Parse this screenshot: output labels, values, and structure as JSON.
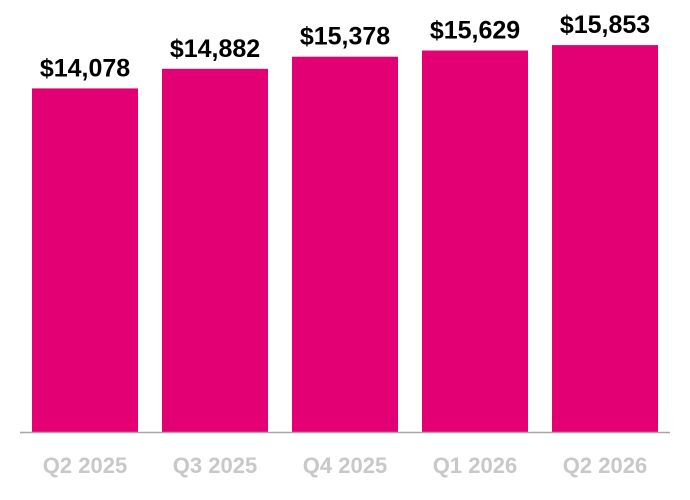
{
  "colors": {
    "bar": "#e20074",
    "axis": "#a6a6a6",
    "value_label": "#000000",
    "tick_label": "#c8c8c8"
  },
  "chart_data": {
    "type": "bar",
    "title": "",
    "xlabel": "",
    "ylabel": "",
    "categories": [
      "Q2 2025",
      "Q3 2025",
      "Q4 2025",
      "Q1 2026",
      "Q2 2026"
    ],
    "values": [
      14078,
      14882,
      15378,
      15629,
      15853
    ],
    "data_labels": [
      "$14,078",
      "$14,882",
      "$15,378",
      "$15,629",
      "$15,853"
    ],
    "ylim": [
      0,
      17700
    ],
    "grid": false,
    "legend": "none"
  }
}
